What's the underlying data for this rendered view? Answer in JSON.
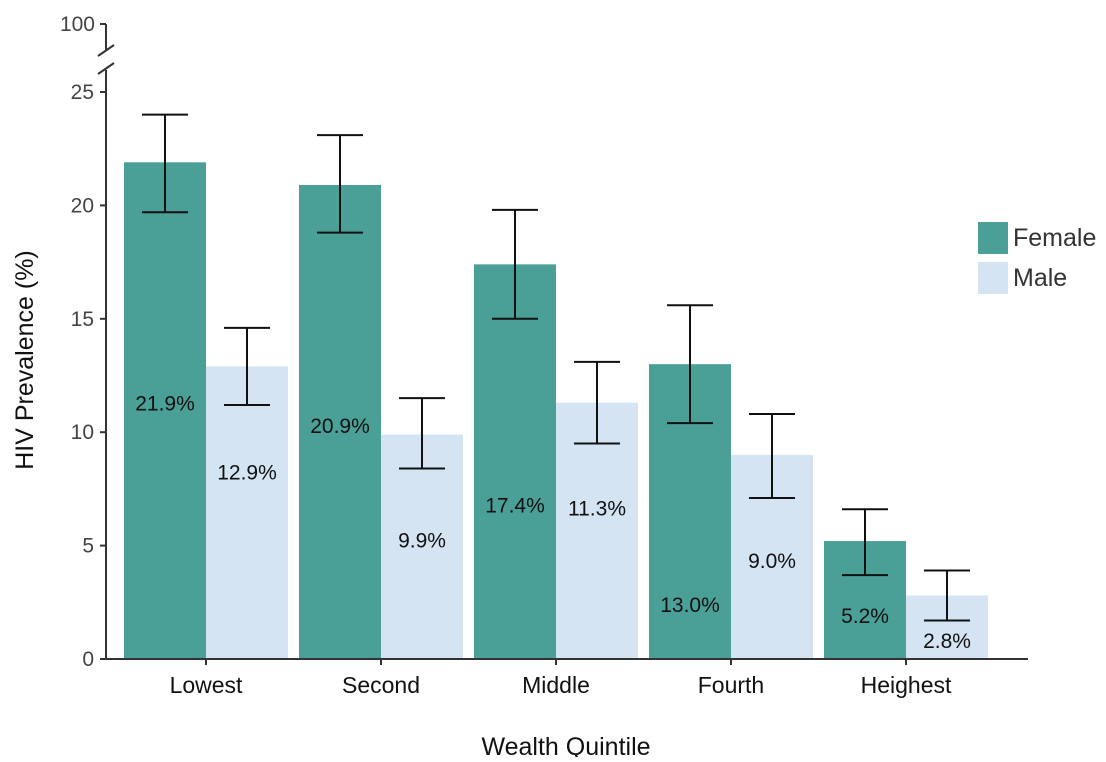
{
  "chart_data": {
    "type": "bar",
    "xlabel": "Wealth Quintile",
    "ylabel": "HIV Prevalence (%)",
    "ylim": [
      0,
      25
    ],
    "ybreak_top_tick": "100",
    "yticks": [
      0,
      5,
      10,
      15,
      20,
      25
    ],
    "categories": [
      "Lowest",
      "Second",
      "Middle",
      "Fourth",
      "Heighest"
    ],
    "series": [
      {
        "name": "Female",
        "color": "#4a9f96",
        "values": [
          21.9,
          20.9,
          17.4,
          13.0,
          5.2
        ],
        "labels": [
          "21.9%",
          "20.9%",
          "17.4%",
          "13.0%",
          "5.2%"
        ],
        "ci_low": [
          19.7,
          18.8,
          15.0,
          10.4,
          3.7
        ],
        "ci_high": [
          24.0,
          23.1,
          19.8,
          15.6,
          6.6
        ]
      },
      {
        "name": "Male",
        "color": "#d4e4f2",
        "values": [
          12.9,
          9.9,
          11.3,
          9.0,
          2.8
        ],
        "labels": [
          "12.9%",
          "9.9%",
          "11.3%",
          "9.0%",
          "2.8%"
        ],
        "ci_low": [
          11.2,
          8.4,
          9.5,
          7.1,
          1.7
        ],
        "ci_high": [
          14.6,
          11.5,
          13.1,
          10.8,
          3.9
        ]
      }
    ],
    "grid": false,
    "legend_position": "right"
  }
}
